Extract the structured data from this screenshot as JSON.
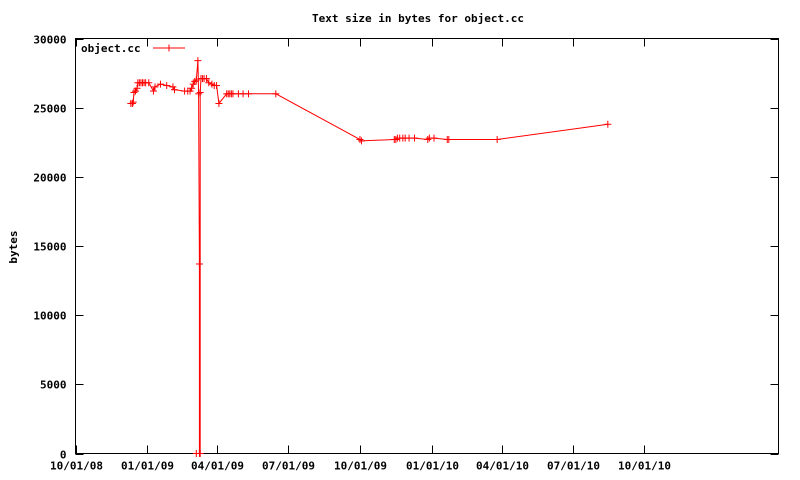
{
  "chart_data": {
    "type": "line",
    "title": "Text size in bytes for object.cc",
    "xlabel": "",
    "ylabel": "bytes",
    "ylim": [
      0,
      30000
    ],
    "yticks": [
      0,
      5000,
      10000,
      15000,
      20000,
      25000,
      30000
    ],
    "xlim": [
      "2008-10-01",
      "2011-03-22"
    ],
    "xticks": [
      "2008-10-01",
      "2009-01-01",
      "2009-04-01",
      "2009-07-01",
      "2009-10-01",
      "2010-01-01",
      "2010-04-01",
      "2010-07-01",
      "2010-10-01"
    ],
    "xtick_labels": [
      "10/01/08",
      "01/01/09",
      "04/01/09",
      "07/01/09",
      "10/01/09",
      "01/01/10",
      "04/01/10",
      "07/01/10",
      "10/01/10"
    ],
    "grid": false,
    "legend_position": "top-left",
    "colors": {
      "series": "#ff0000",
      "axes": "#000000",
      "background": "#ffffff"
    },
    "series": [
      {
        "name": "object.cc",
        "points": [
          [
            "2008-12-11",
            25300
          ],
          [
            "2008-12-13",
            25300
          ],
          [
            "2008-12-14",
            25400
          ],
          [
            "2008-12-15",
            26100
          ],
          [
            "2008-12-17",
            26200
          ],
          [
            "2008-12-19",
            26400
          ],
          [
            "2008-12-20",
            26800
          ],
          [
            "2008-12-22",
            26800
          ],
          [
            "2008-12-24",
            26800
          ],
          [
            "2008-12-26",
            26800
          ],
          [
            "2008-12-28",
            26800
          ],
          [
            "2008-12-30",
            26800
          ],
          [
            "2009-01-03",
            26800
          ],
          [
            "2009-01-09",
            26200
          ],
          [
            "2009-01-11",
            26500
          ],
          [
            "2009-01-18",
            26700
          ],
          [
            "2009-01-26",
            26600
          ],
          [
            "2009-02-03",
            26500
          ],
          [
            "2009-02-05",
            26300
          ],
          [
            "2009-02-18",
            26200
          ],
          [
            "2009-02-22",
            26200
          ],
          [
            "2009-02-25",
            26200
          ],
          [
            "2009-02-27",
            26400
          ],
          [
            "2009-03-01",
            26700
          ],
          [
            "2009-03-03",
            26900
          ],
          [
            "2009-03-05",
            27000
          ],
          [
            "2009-03-07",
            28400
          ],
          [
            "2009-03-08",
            26000
          ],
          [
            "2009-03-09",
            13700
          ],
          [
            "2009-03-09",
            0
          ],
          [
            "2009-03-05",
            0
          ],
          [
            "2009-03-10",
            0
          ],
          [
            "2009-03-10",
            26100
          ],
          [
            "2009-03-11",
            27100
          ],
          [
            "2009-03-13",
            27100
          ],
          [
            "2009-03-15",
            27100
          ],
          [
            "2009-03-18",
            27100
          ],
          [
            "2009-03-21",
            26800
          ],
          [
            "2009-03-25",
            26700
          ],
          [
            "2009-03-28",
            26600
          ],
          [
            "2009-03-31",
            26600
          ],
          [
            "2009-04-03",
            25300
          ],
          [
            "2009-04-13",
            26000
          ],
          [
            "2009-04-15",
            26000
          ],
          [
            "2009-04-17",
            26000
          ],
          [
            "2009-04-19",
            26000
          ],
          [
            "2009-04-21",
            26000
          ],
          [
            "2009-04-28",
            26000
          ],
          [
            "2009-05-04",
            26000
          ],
          [
            "2009-05-11",
            26000
          ],
          [
            "2009-06-15",
            26000
          ],
          [
            "2009-10-01",
            22700
          ],
          [
            "2009-10-03",
            22600
          ],
          [
            "2009-11-14",
            22700
          ],
          [
            "2009-11-16",
            22700
          ],
          [
            "2009-11-18",
            22800
          ],
          [
            "2009-11-21",
            22800
          ],
          [
            "2009-11-25",
            22800
          ],
          [
            "2009-11-28",
            22800
          ],
          [
            "2009-12-03",
            22800
          ],
          [
            "2009-12-10",
            22800
          ],
          [
            "2009-12-27",
            22700
          ],
          [
            "2009-12-29",
            22800
          ],
          [
            "2010-01-04",
            22800
          ],
          [
            "2010-01-21",
            22700
          ],
          [
            "2010-01-23",
            22700
          ],
          [
            "2010-03-26",
            22700
          ],
          [
            "2010-08-15",
            23800
          ]
        ]
      }
    ]
  }
}
